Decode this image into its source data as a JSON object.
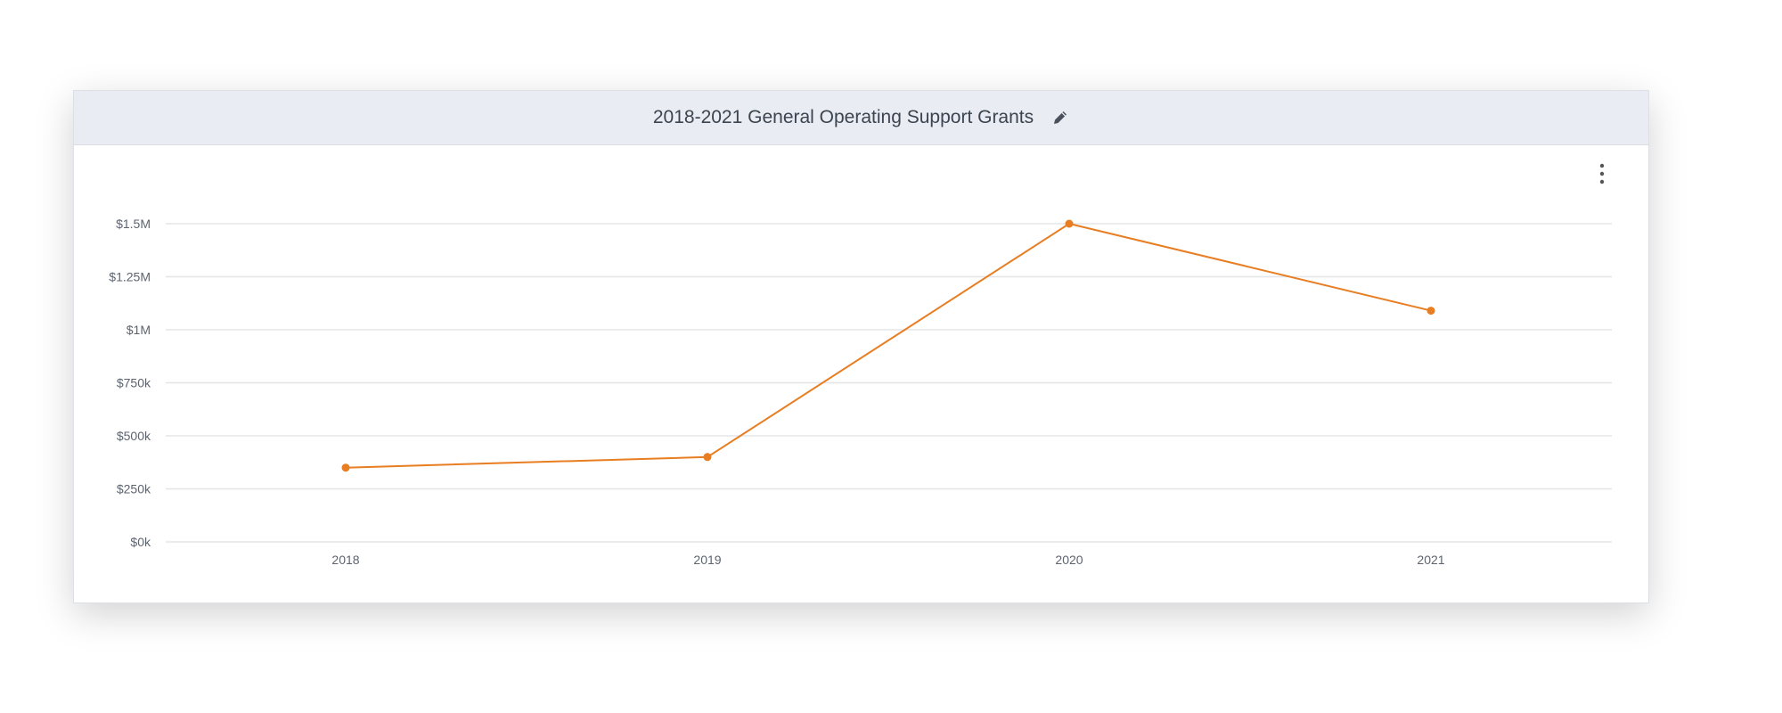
{
  "header": {
    "title": "2018-2021 General Operating Support Grants",
    "edit_icon": "pencil-icon",
    "menu_icon": "more-vertical-icon"
  },
  "colors": {
    "line": "#e87d22",
    "grid": "#e3e5e8",
    "header_bg": "#e9edf3",
    "text": "#5d6470"
  },
  "chart_data": {
    "type": "line",
    "title": "",
    "xlabel": "",
    "ylabel": "",
    "categories": [
      "2018",
      "2019",
      "2020",
      "2021"
    ],
    "series": [
      {
        "values": [
          350000,
          400000,
          1500000,
          1090000
        ]
      }
    ],
    "ylim": [
      0,
      1500000
    ],
    "yticks": [
      0,
      250000,
      500000,
      750000,
      1000000,
      1250000,
      1500000
    ],
    "ytick_labels": [
      "$0k",
      "$250k",
      "$500k",
      "$750k",
      "$1M",
      "$1.25M",
      "$1.5M"
    ],
    "grid": true,
    "legend": "none"
  }
}
